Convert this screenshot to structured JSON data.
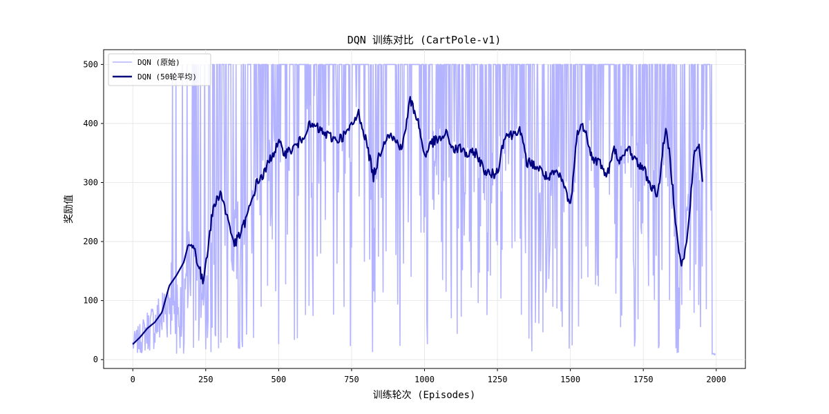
{
  "chart_data": {
    "type": "line",
    "title": "DQN 训练对比 (CartPole-v1)",
    "xlabel": "训练轮次 (Episodes)",
    "ylabel": "奖励值",
    "xlim": [
      -100,
      2100
    ],
    "ylim": [
      -15,
      525
    ],
    "xticks": [
      0,
      250,
      500,
      750,
      1000,
      1250,
      1500,
      1750,
      2000
    ],
    "yticks": [
      0,
      100,
      200,
      300,
      400,
      500
    ],
    "grid": true,
    "legend_position": "top-left",
    "series": [
      {
        "name": "DQN (原始)",
        "color": "#b3b3ff",
        "style": "raw-noisy",
        "x": [
          0,
          25,
          50,
          75,
          100,
          125,
          150,
          175,
          200,
          225,
          250,
          275,
          300,
          325,
          350,
          375,
          400,
          425,
          450,
          475,
          500,
          525,
          550,
          575,
          600,
          625,
          650,
          675,
          700,
          725,
          750,
          775,
          800,
          825,
          850,
          875,
          900,
          925,
          950,
          975,
          1000,
          1025,
          1050,
          1075,
          1100,
          1125,
          1150,
          1175,
          1200,
          1225,
          1250,
          1275,
          1300,
          1325,
          1350,
          1375,
          1400,
          1425,
          1450,
          1475,
          1500,
          1525,
          1550,
          1575,
          1600,
          1625,
          1650,
          1675,
          1700,
          1725,
          1750,
          1775,
          1800,
          1825,
          1850,
          1875,
          1900,
          1925,
          1950,
          1975,
          1999
        ],
        "y": [
          26,
          35,
          50,
          60,
          72,
          110,
          135,
          160,
          195,
          170,
          130,
          230,
          275,
          280,
          240,
          200,
          250,
          300,
          320,
          340,
          365,
          360,
          355,
          375,
          395,
          395,
          380,
          370,
          375,
          380,
          405,
          415,
          330,
          310,
          360,
          385,
          370,
          360,
          440,
          400,
          345,
          370,
          375,
          380,
          360,
          360,
          345,
          360,
          330,
          310,
          315,
          385,
          380,
          395,
          340,
          330,
          320,
          300,
          320,
          300,
          290,
          385,
          395,
          340,
          335,
          310,
          360,
          330,
          360,
          330,
          320,
          305,
          280,
          390,
          290,
          160,
          250,
          360,
          300,
          500,
          8
        ]
      },
      {
        "name": "DQN (50轮平均)",
        "color": "#00007f",
        "style": "smoothed",
        "x": [
          0,
          25,
          50,
          75,
          100,
          125,
          150,
          175,
          190,
          210,
          225,
          240,
          260,
          275,
          300,
          325,
          340,
          350,
          375,
          400,
          425,
          450,
          475,
          500,
          525,
          550,
          575,
          600,
          625,
          650,
          675,
          700,
          725,
          750,
          775,
          800,
          825,
          850,
          875,
          900,
          925,
          950,
          975,
          1000,
          1025,
          1050,
          1075,
          1100,
          1125,
          1150,
          1175,
          1200,
          1225,
          1250,
          1275,
          1300,
          1325,
          1350,
          1375,
          1400,
          1425,
          1450,
          1475,
          1500,
          1525,
          1550,
          1575,
          1600,
          1625,
          1650,
          1675,
          1700,
          1725,
          1750,
          1775,
          1800,
          1825,
          1840,
          1860,
          1880,
          1900,
          1925,
          1940,
          1955
        ],
        "y": [
          26,
          38,
          53,
          63,
          80,
          125,
          143,
          165,
          195,
          190,
          160,
          130,
          200,
          255,
          285,
          240,
          210,
          195,
          220,
          255,
          300,
          315,
          345,
          365,
          350,
          358,
          370,
          395,
          395,
          385,
          378,
          372,
          380,
          395,
          418,
          370,
          310,
          355,
          385,
          370,
          360,
          440,
          410,
          345,
          368,
          372,
          382,
          355,
          358,
          345,
          352,
          325,
          312,
          318,
          382,
          380,
          393,
          335,
          330,
          320,
          305,
          318,
          300,
          260,
          390,
          395,
          340,
          335,
          310,
          355,
          335,
          360,
          335,
          325,
          295,
          280,
          390,
          350,
          240,
          155,
          200,
          350,
          365,
          300
        ]
      }
    ]
  }
}
